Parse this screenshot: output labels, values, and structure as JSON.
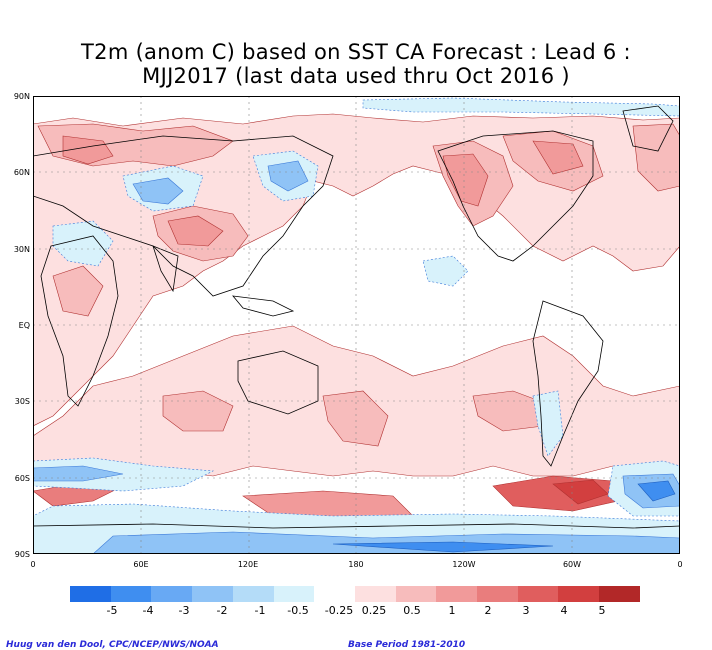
{
  "title": {
    "line1": "T2m (anom C) based on SST CA Forecast : Lead 6 :",
    "line2": "MJJ2017 (last data used thru Oct 2016 )"
  },
  "map": {
    "lat_labels": [
      "90N",
      "60N",
      "30N",
      "EQ",
      "30S",
      "60S",
      "90S"
    ],
    "lon_labels": [
      "0",
      "60E",
      "120E",
      "180",
      "120W",
      "60W",
      "0"
    ]
  },
  "colorbar": {
    "colors": [
      "#1f6ee6",
      "#3f8ef0",
      "#68a9f4",
      "#8fc3f6",
      "#b4dcf8",
      "#d8f2fb",
      "#ffffff",
      "#fde0e0",
      "#f7bcbc",
      "#f19a9a",
      "#e97d7d",
      "#e05e5e",
      "#d23f3f",
      "#b22828"
    ],
    "tick_labels": [
      "-5",
      "-4",
      "-3",
      "-2",
      "-1",
      "-0.5",
      "-0.25",
      "0.25",
      "0.5",
      "1",
      "2",
      "3",
      "4",
      "5"
    ]
  },
  "credits": {
    "left": "Huug van den Dool, CPC/NCEP/NWS/NOAA",
    "right": "Base Period 1981-2010"
  }
}
